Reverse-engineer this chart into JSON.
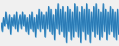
{
  "line_color": "#2a7ab5",
  "fill_color": "#4a9fd4",
  "background_color": "#f0f0f0",
  "linewidth": 0.7,
  "values": [
    0,
    -3,
    2,
    -1,
    4,
    1,
    -2,
    3,
    -4,
    2,
    -1,
    3,
    -2,
    4,
    -3,
    1,
    3,
    -2,
    4,
    -1,
    3,
    -3,
    2,
    -4,
    3,
    -2,
    4,
    -3,
    2,
    -5,
    3,
    -2,
    5,
    -3,
    4,
    -2,
    3,
    -5,
    4,
    -2,
    6,
    -3,
    5,
    -4,
    3,
    -6,
    5,
    -2,
    7,
    -4,
    5,
    -3,
    6,
    -5,
    4,
    -7,
    6,
    -3,
    5,
    -6,
    4,
    -5,
    7,
    -3,
    6,
    -5,
    4,
    -7,
    6,
    -3,
    5,
    -6,
    7,
    -4,
    5,
    -7,
    4,
    -3,
    6,
    -5,
    7,
    -4,
    5,
    -6,
    4,
    -5,
    7,
    -3,
    5,
    -6,
    4,
    -4,
    6,
    -3,
    5,
    -5,
    4,
    -6,
    5,
    -4
  ]
}
